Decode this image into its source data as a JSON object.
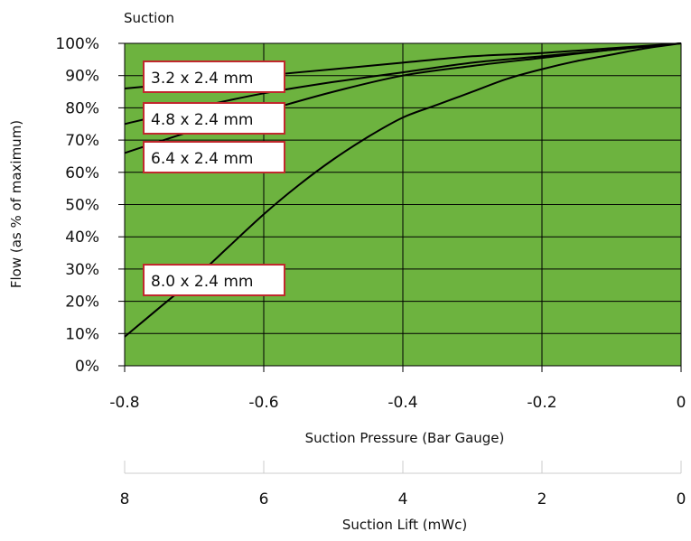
{
  "chart_data": {
    "type": "line",
    "title": "Suction",
    "xlabel": "Suction Pressure (Bar Gauge)",
    "ylabel": "Flow (as % of maximum)",
    "x2label": "Suction Lift (mWc)",
    "xlim": [
      -0.8,
      0
    ],
    "ylim": [
      0,
      100
    ],
    "x_ticks": [
      "-0.8",
      "-0.6",
      "-0.4",
      "-0.2",
      "0"
    ],
    "x2_ticks": [
      "8",
      "6",
      "4",
      "2",
      "0"
    ],
    "y_ticks": [
      "0%",
      "10%",
      "20%",
      "30%",
      "40%",
      "50%",
      "60%",
      "70%",
      "80%",
      "90%",
      "100%"
    ],
    "grid": true,
    "colors": {
      "plot_background": "#6db33f",
      "line": "#000000",
      "label_border": "#c0282d"
    },
    "series": [
      {
        "name": "3.2 x 2.4 mm",
        "x": [
          -0.8,
          -0.7,
          -0.6,
          -0.5,
          -0.4,
          -0.3,
          -0.2,
          -0.1,
          0
        ],
        "y": [
          86,
          88,
          90,
          92,
          94,
          96,
          97,
          98.5,
          100
        ]
      },
      {
        "name": "4.8 x 2.4 mm",
        "x": [
          -0.8,
          -0.7,
          -0.6,
          -0.5,
          -0.4,
          -0.3,
          -0.2,
          -0.1,
          0
        ],
        "y": [
          75,
          80,
          84.5,
          88,
          91,
          94,
          96,
          98,
          100
        ]
      },
      {
        "name": "6.4 x 2.4 mm",
        "x": [
          -0.8,
          -0.7,
          -0.6,
          -0.5,
          -0.4,
          -0.3,
          -0.2,
          -0.1,
          0
        ],
        "y": [
          66,
          73,
          79,
          85,
          90,
          93,
          95.5,
          98,
          100
        ]
      },
      {
        "name": "8.0 x 2.4 mm",
        "x": [
          -0.8,
          -0.75,
          -0.7,
          -0.65,
          -0.6,
          -0.55,
          -0.5,
          -0.45,
          -0.4,
          -0.35,
          -0.3,
          -0.25,
          -0.2,
          -0.15,
          -0.1,
          -0.05,
          0
        ],
        "y": [
          9,
          18,
          27,
          37,
          47,
          56,
          64,
          71,
          77,
          81,
          85,
          89,
          92,
          94.5,
          96.5,
          98.5,
          100
        ]
      }
    ]
  }
}
